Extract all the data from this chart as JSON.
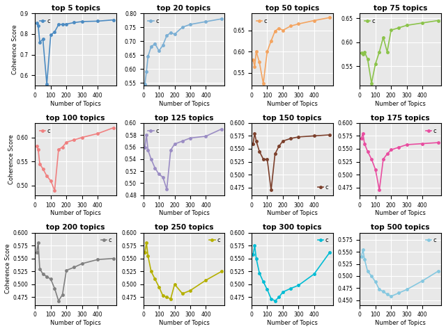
{
  "subplots": [
    {
      "title": "top 5 topics",
      "color": "#4C8BC2",
      "x": [
        10,
        20,
        30,
        50,
        75,
        100,
        125,
        150,
        175,
        200,
        250,
        300,
        400,
        500
      ],
      "y": [
        0.853,
        0.84,
        0.76,
        0.775,
        0.556,
        0.795,
        0.81,
        0.845,
        0.847,
        0.848,
        0.855,
        0.86,
        0.862,
        0.868
      ],
      "ylim": [
        0.55,
        0.9
      ],
      "yticks": [
        0.6,
        0.65,
        0.7,
        0.75,
        0.8,
        0.85
      ],
      "legend_loc": "lower right"
    },
    {
      "title": "top 20 topics",
      "color": "#7BAFD4",
      "x": [
        10,
        20,
        30,
        50,
        75,
        100,
        125,
        150,
        175,
        200,
        250,
        300,
        400,
        500
      ],
      "y": [
        0.545,
        0.59,
        0.645,
        0.68,
        0.69,
        0.665,
        0.685,
        0.72,
        0.73,
        0.725,
        0.75,
        0.76,
        0.77,
        0.78
      ],
      "ylim": [
        0.54,
        0.8
      ],
      "yticks": [
        0.6,
        0.65,
        0.7,
        0.75
      ],
      "legend_loc": "lower right"
    },
    {
      "title": "top 50 topics",
      "color": "#F4A460",
      "x": [
        10,
        20,
        30,
        50,
        75,
        100,
        125,
        150,
        175,
        200,
        250,
        300,
        400,
        500
      ],
      "y": [
        0.58,
        0.565,
        0.6,
        0.575,
        0.525,
        0.6,
        0.625,
        0.648,
        0.655,
        0.65,
        0.66,
        0.665,
        0.673,
        0.68
      ],
      "ylim": [
        0.52,
        0.69
      ],
      "yticks": [
        0.525,
        0.55,
        0.575,
        0.6,
        0.625,
        0.65,
        0.675
      ],
      "legend_loc": "lower right"
    },
    {
      "title": "top 75 topics",
      "color": "#8BC34A",
      "x": [
        10,
        20,
        30,
        50,
        75,
        100,
        125,
        150,
        175,
        200,
        250,
        300,
        400,
        500
      ],
      "y": [
        0.578,
        0.575,
        0.58,
        0.565,
        0.515,
        0.555,
        0.58,
        0.61,
        0.58,
        0.625,
        0.63,
        0.635,
        0.64,
        0.645
      ],
      "ylim": [
        0.51,
        0.66
      ],
      "yticks": [
        0.525,
        0.55,
        0.575,
        0.6,
        0.625,
        0.65
      ],
      "legend_loc": "lower right"
    },
    {
      "title": "top 100 topics",
      "color": "#F08080",
      "x": [
        10,
        20,
        30,
        50,
        75,
        100,
        125,
        150,
        175,
        200,
        250,
        300,
        400,
        500
      ],
      "y": [
        0.582,
        0.575,
        0.545,
        0.535,
        0.52,
        0.51,
        0.49,
        0.575,
        0.58,
        0.59,
        0.595,
        0.6,
        0.608,
        0.62
      ],
      "ylim": [
        0.48,
        0.63
      ],
      "yticks": [
        0.5,
        0.52,
        0.54,
        0.56,
        0.58,
        0.6,
        0.62
      ],
      "legend_loc": "lower right"
    },
    {
      "title": "top 125 topics",
      "color": "#9B8DC4",
      "x": [
        10,
        20,
        30,
        50,
        75,
        100,
        125,
        150,
        175,
        200,
        250,
        300,
        400,
        500
      ],
      "y": [
        0.56,
        0.58,
        0.555,
        0.54,
        0.525,
        0.515,
        0.51,
        0.49,
        0.555,
        0.565,
        0.57,
        0.575,
        0.578,
        0.59
      ],
      "ylim": [
        0.48,
        0.6
      ],
      "yticks": [
        0.48,
        0.5,
        0.52,
        0.54,
        0.56,
        0.58
      ],
      "legend_loc": "lower right"
    },
    {
      "title": "top 150 topics",
      "color": "#7B3F2B",
      "x": [
        10,
        20,
        30,
        50,
        75,
        100,
        125,
        150,
        175,
        200,
        250,
        300,
        400,
        500
      ],
      "y": [
        0.56,
        0.58,
        0.565,
        0.545,
        0.53,
        0.53,
        0.47,
        0.54,
        0.555,
        0.565,
        0.57,
        0.573,
        0.575,
        0.577
      ],
      "ylim": [
        0.46,
        0.6
      ],
      "yticks": [
        0.48,
        0.5,
        0.52,
        0.54,
        0.56,
        0.58
      ],
      "legend_loc": "lower right"
    },
    {
      "title": "top 175 topics",
      "color": "#E84DA0",
      "x": [
        10,
        20,
        30,
        50,
        75,
        100,
        125,
        150,
        175,
        200,
        250,
        300,
        400,
        500
      ],
      "y": [
        0.57,
        0.58,
        0.56,
        0.545,
        0.53,
        0.51,
        0.47,
        0.53,
        0.54,
        0.548,
        0.553,
        0.558,
        0.56,
        0.562
      ],
      "ylim": [
        0.46,
        0.6
      ],
      "yticks": [
        0.48,
        0.5,
        0.52,
        0.54,
        0.56,
        0.58
      ],
      "legend_loc": "upper right"
    },
    {
      "title": "top 200 topics",
      "color": "#808080",
      "x": [
        10,
        20,
        30,
        50,
        75,
        100,
        125,
        150,
        175,
        200,
        250,
        300,
        400,
        500
      ],
      "y": [
        0.562,
        0.58,
        0.53,
        0.52,
        0.515,
        0.51,
        0.492,
        0.468,
        0.48,
        0.527,
        0.533,
        0.54,
        0.548,
        0.55
      ],
      "ylim": [
        0.46,
        0.6
      ],
      "yticks": [
        0.48,
        0.5,
        0.52,
        0.54,
        0.56,
        0.58
      ],
      "legend_loc": "upper right"
    },
    {
      "title": "top 250 topics",
      "color": "#B5B000",
      "x": [
        10,
        20,
        30,
        50,
        75,
        100,
        125,
        150,
        175,
        200,
        250,
        300,
        400,
        500
      ],
      "y": [
        0.562,
        0.58,
        0.555,
        0.525,
        0.51,
        0.495,
        0.478,
        0.475,
        0.472,
        0.5,
        0.482,
        0.488,
        0.508,
        0.525
      ],
      "ylim": [
        0.46,
        0.6
      ],
      "yticks": [
        0.48,
        0.5,
        0.52,
        0.54,
        0.56,
        0.58
      ],
      "legend_loc": "upper right"
    },
    {
      "title": "top 300 topics",
      "color": "#00BCD4",
      "x": [
        10,
        20,
        30,
        50,
        75,
        100,
        125,
        150,
        175,
        200,
        250,
        300,
        400,
        500
      ],
      "y": [
        0.558,
        0.575,
        0.55,
        0.522,
        0.505,
        0.49,
        0.472,
        0.468,
        0.475,
        0.485,
        0.492,
        0.498,
        0.52,
        0.562
      ],
      "ylim": [
        0.46,
        0.6
      ],
      "yticks": [
        0.48,
        0.5,
        0.52,
        0.54,
        0.56,
        0.58
      ],
      "legend_loc": "upper right"
    },
    {
      "title": "top 500 topics",
      "color": "#85C8E0",
      "x": [
        10,
        20,
        30,
        50,
        75,
        100,
        125,
        150,
        175,
        200,
        250,
        300,
        400,
        500
      ],
      "y": [
        0.54,
        0.555,
        0.535,
        0.51,
        0.5,
        0.488,
        0.472,
        0.468,
        0.462,
        0.458,
        0.465,
        0.472,
        0.49,
        0.51
      ],
      "ylim": [
        0.44,
        0.59
      ],
      "yticks": [
        0.45,
        0.475,
        0.5,
        0.525,
        0.55,
        0.575
      ],
      "legend_loc": "upper right"
    }
  ],
  "xlabel": "Number of Topics",
  "ylabel": "Coherence Score",
  "bg_color": "#E8E8E8",
  "grid_color": "white",
  "legend_label": "c"
}
